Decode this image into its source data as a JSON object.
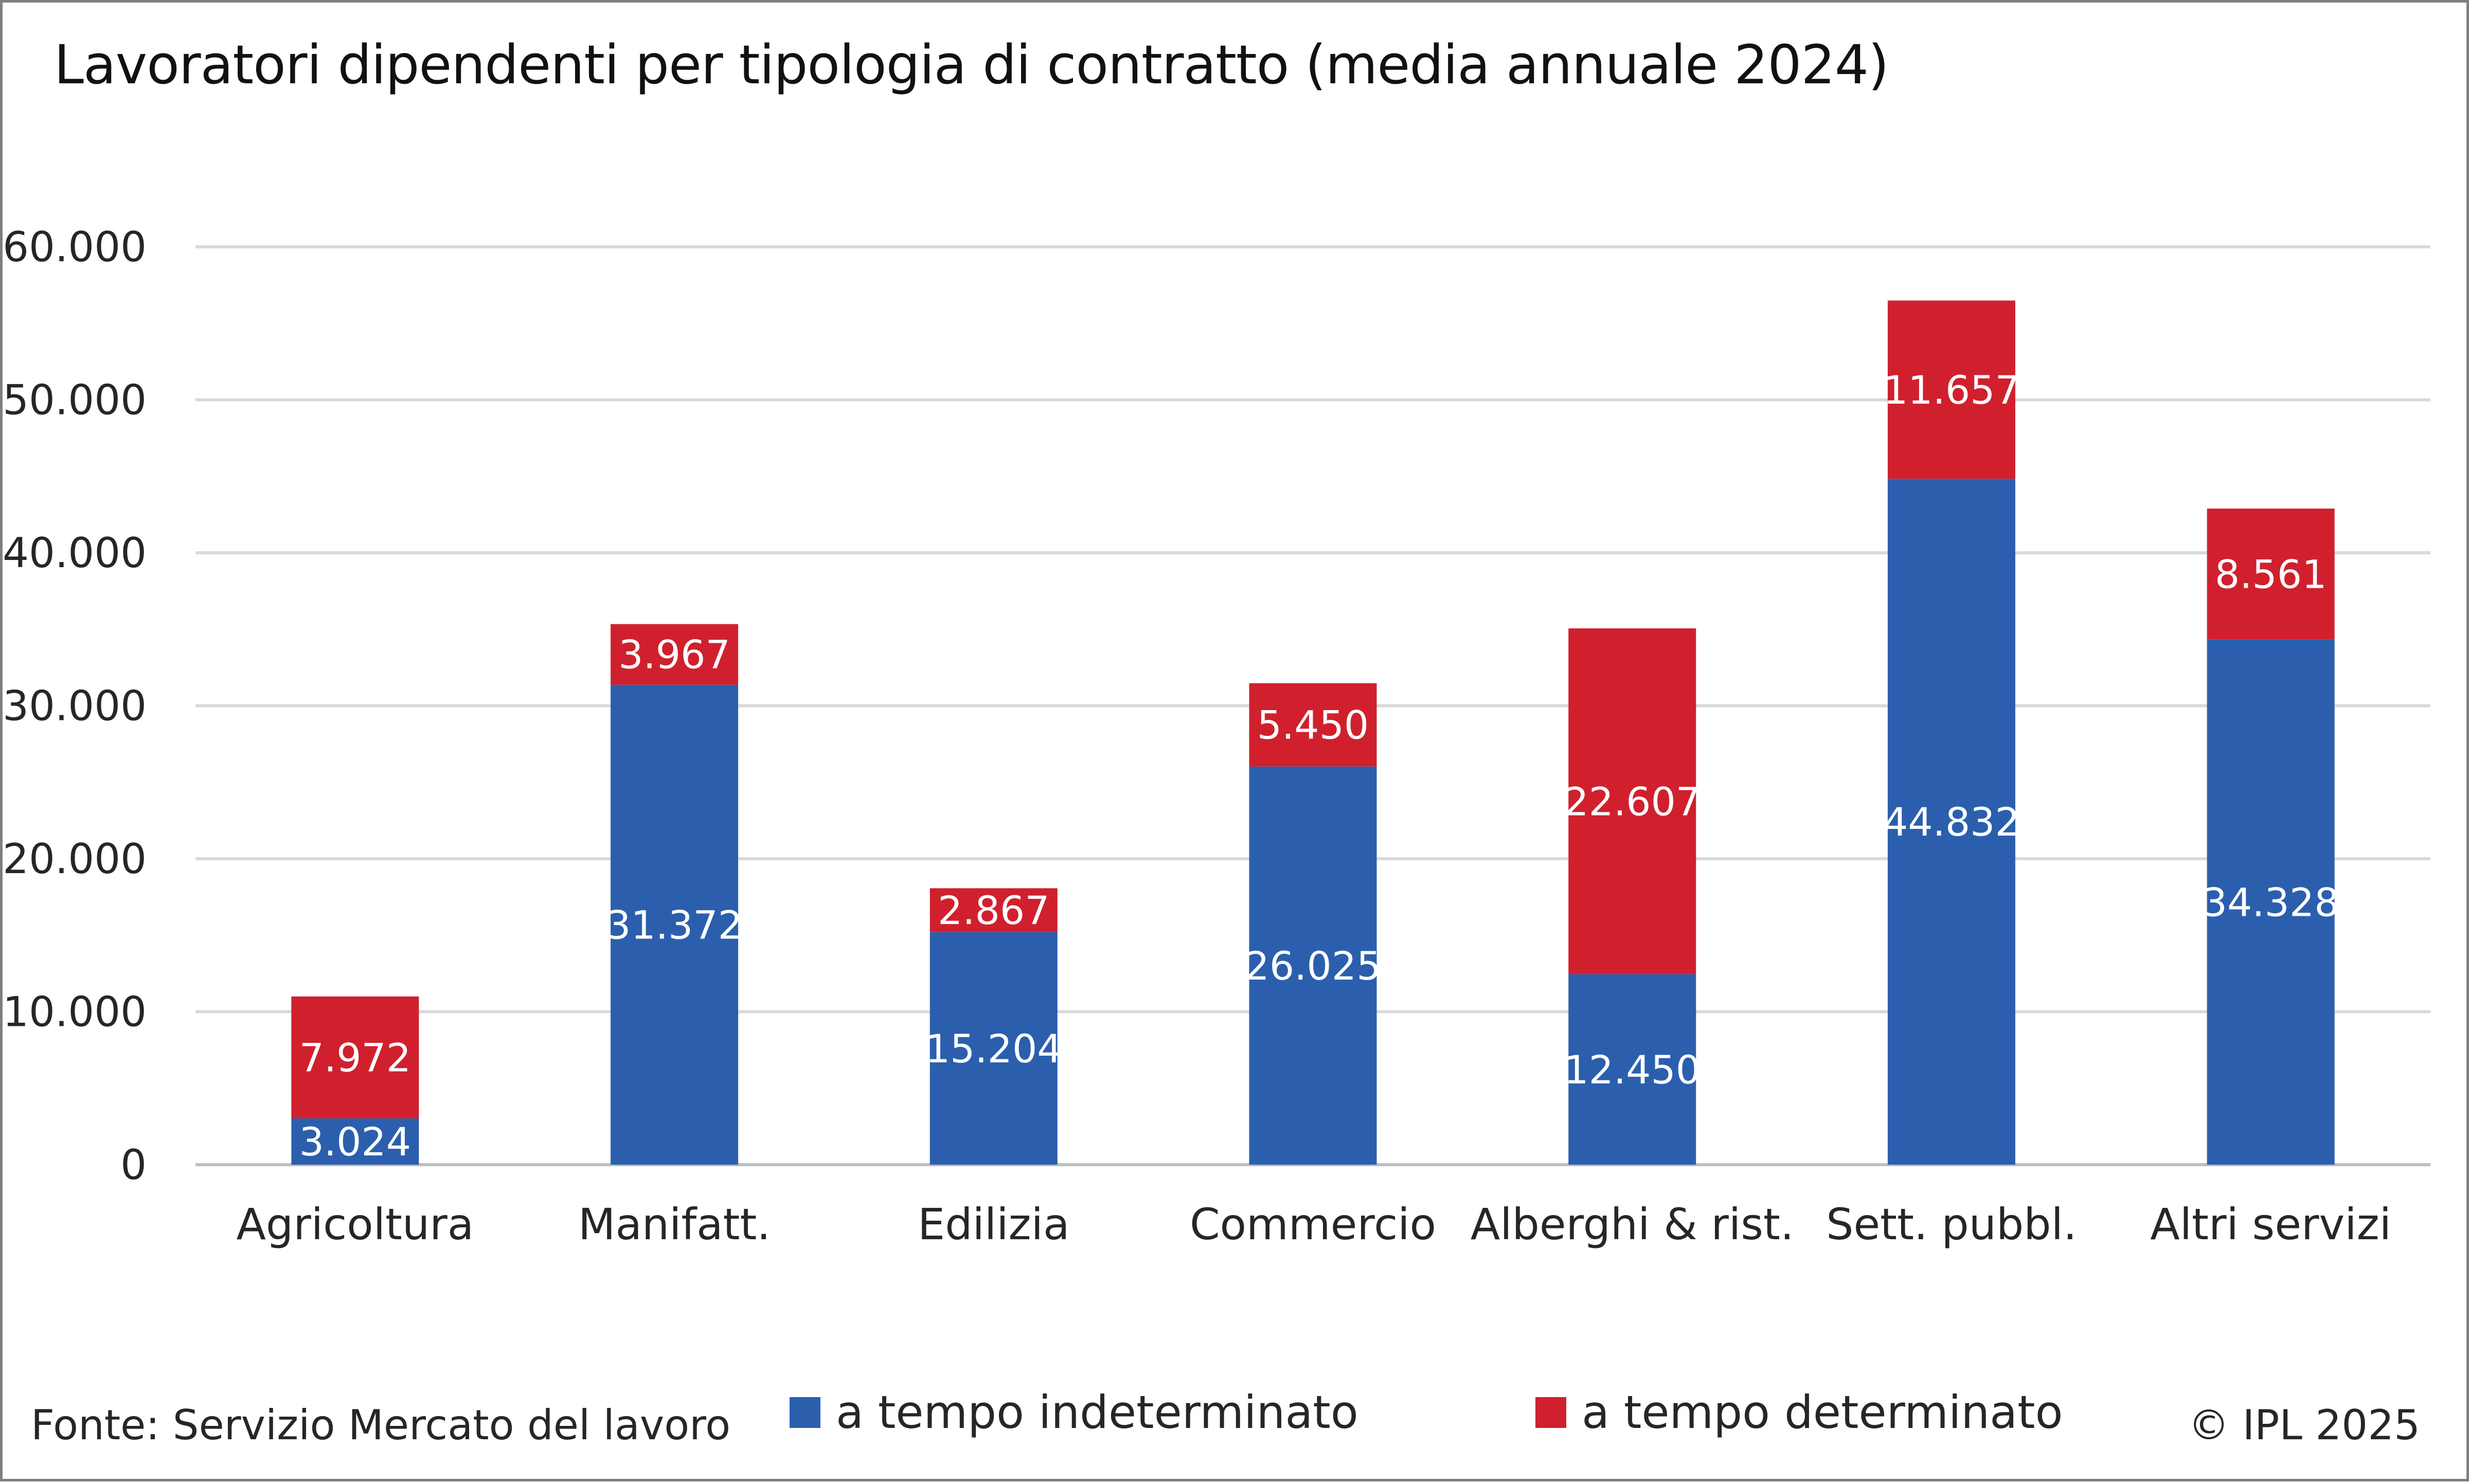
{
  "chart_data": {
    "type": "bar",
    "stacked": true,
    "title": "Lavoratori dipendenti per tipologia di contratto (media annuale 2024)",
    "xlabel": "",
    "ylabel": "",
    "ylim": [
      0,
      60000
    ],
    "yticks": [
      0,
      10000,
      20000,
      30000,
      40000,
      50000,
      60000
    ],
    "ytick_labels": [
      "0",
      "10.000",
      "20.000",
      "30.000",
      "40.000",
      "50.000",
      "60.000"
    ],
    "grid": true,
    "legend_position": "bottom",
    "categories": [
      "Agricoltura",
      "Manifatt.",
      "Edilizia",
      "Commercio",
      "Alberghi & rist.",
      "Sett. pubbl.",
      "Altri servizi"
    ],
    "series": [
      {
        "name": "a tempo indeterminato",
        "color": "#2b5fae",
        "values": [
          3024,
          31372,
          15204,
          26025,
          12450,
          44832,
          34328
        ],
        "labels": [
          "3.024",
          "31.372",
          "15.204",
          "26.025",
          "12.450",
          "44.832",
          "34.328"
        ]
      },
      {
        "name": "a tempo determinato",
        "color": "#d0202e",
        "values": [
          7972,
          3967,
          2867,
          5450,
          22607,
          11657,
          8561
        ],
        "labels": [
          "7.972",
          "3.967",
          "2.867",
          "5.450",
          "22.607",
          "11.657",
          "8.561"
        ]
      }
    ]
  },
  "footer": {
    "source": "Fonte: Servizio Mercato del lavoro",
    "copyright": "© IPL 2025"
  },
  "colors": {
    "gridline": "#d9d9d9",
    "axis_line": "#bfbfbf",
    "frame_border": "#7f7f7f"
  }
}
